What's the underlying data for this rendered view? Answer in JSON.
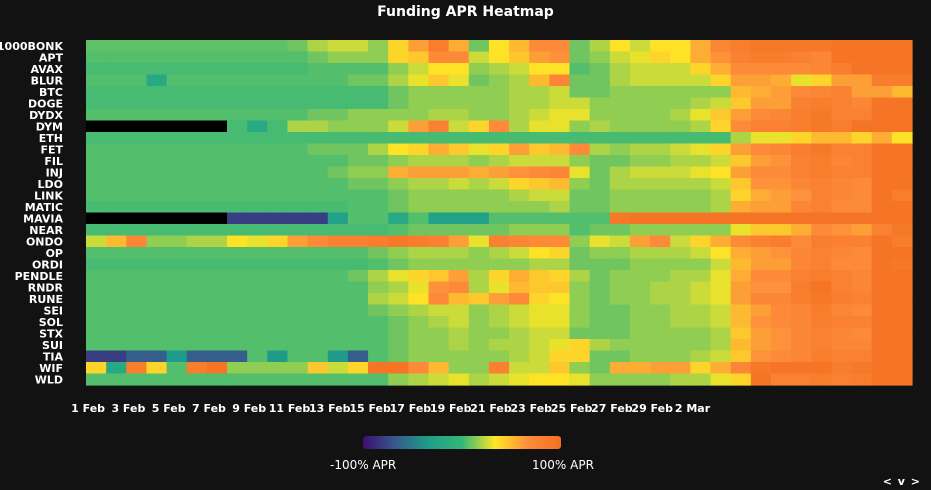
{
  "chart_data": {
    "type": "heatmap",
    "title": "Funding APR Heatmap",
    "rows": [
      "1000BONK",
      "APT",
      "AVAX",
      "BLUR",
      "BTC",
      "DOGE",
      "DYDX",
      "DYM",
      "ETH",
      "FET",
      "FIL",
      "INJ",
      "LDO",
      "LINK",
      "MATIC",
      "MAVIA",
      "NEAR",
      "ONDO",
      "OP",
      "ORDI",
      "PENDLE",
      "RNDR",
      "RUNE",
      "SEI",
      "SOL",
      "STX",
      "SUI",
      "TIA",
      "WIF",
      "WLD"
    ],
    "x_tick_labels": [
      "1 Feb",
      "3 Feb",
      "5 Feb",
      "7 Feb",
      "9 Feb",
      "11 Feb",
      "13 Feb",
      "15 Feb",
      "17 Feb",
      "19 Feb",
      "21 Feb",
      "23 Feb",
      "25 Feb",
      "27 Feb",
      "29 Feb",
      "2 Mar"
    ],
    "value_scale": [
      -100,
      100
    ],
    "missing_color": "#000000",
    "colors": [
      "#3b0f6f",
      "#375b8d",
      "#1f9e89",
      "#35b779",
      "#fde725",
      "#fd8d3c",
      "#f37021"
    ],
    "data": [
      [
        7,
        7,
        7,
        7,
        7,
        7,
        7,
        7,
        7,
        7,
        10,
        20,
        25,
        25,
        15,
        40,
        60,
        85,
        55,
        10,
        35,
        50,
        70,
        70,
        10,
        20,
        35,
        25,
        35,
        35,
        55,
        75,
        85,
        90,
        90,
        90,
        90,
        95,
        95,
        95,
        95
      ],
      [
        5,
        5,
        5,
        5,
        5,
        5,
        5,
        5,
        5,
        5,
        5,
        10,
        15,
        15,
        15,
        40,
        45,
        70,
        70,
        25,
        35,
        45,
        60,
        65,
        10,
        15,
        25,
        30,
        40,
        35,
        55,
        65,
        80,
        85,
        85,
        80,
        75,
        95,
        95,
        95,
        95
      ],
      [
        3,
        3,
        3,
        3,
        3,
        3,
        3,
        3,
        3,
        3,
        3,
        5,
        5,
        5,
        5,
        15,
        25,
        35,
        35,
        15,
        20,
        25,
        35,
        35,
        5,
        10,
        20,
        25,
        25,
        25,
        40,
        55,
        70,
        70,
        70,
        70,
        75,
        85,
        95,
        95,
        95
      ],
      [
        5,
        5,
        5,
        -20,
        5,
        5,
        5,
        5,
        5,
        5,
        5,
        5,
        5,
        10,
        10,
        20,
        30,
        45,
        30,
        10,
        15,
        20,
        50,
        75,
        10,
        10,
        20,
        25,
        25,
        25,
        25,
        40,
        60,
        60,
        55,
        30,
        40,
        60,
        60,
        85,
        85
      ],
      [
        3,
        3,
        3,
        3,
        3,
        3,
        3,
        3,
        3,
        3,
        3,
        3,
        3,
        3,
        3,
        10,
        15,
        15,
        15,
        15,
        15,
        20,
        20,
        25,
        10,
        10,
        15,
        15,
        15,
        15,
        15,
        15,
        50,
        55,
        60,
        70,
        75,
        80,
        60,
        60,
        50
      ],
      [
        3,
        3,
        3,
        3,
        3,
        3,
        3,
        3,
        3,
        3,
        3,
        3,
        3,
        3,
        3,
        10,
        15,
        15,
        15,
        15,
        15,
        20,
        20,
        25,
        25,
        15,
        15,
        15,
        15,
        15,
        20,
        25,
        45,
        60,
        60,
        80,
        85,
        80,
        75,
        95,
        95
      ],
      [
        5,
        5,
        5,
        5,
        5,
        5,
        5,
        5,
        5,
        5,
        5,
        10,
        10,
        15,
        15,
        15,
        15,
        20,
        20,
        15,
        15,
        20,
        25,
        30,
        30,
        15,
        15,
        15,
        15,
        20,
        30,
        45,
        60,
        70,
        75,
        85,
        90,
        80,
        80,
        95,
        95
      ],
      [
        "x",
        "x",
        "x",
        "x",
        "x",
        "x",
        "x",
        3,
        -20,
        3,
        20,
        20,
        15,
        15,
        15,
        25,
        60,
        80,
        25,
        40,
        70,
        20,
        30,
        30,
        15,
        20,
        15,
        15,
        15,
        15,
        20,
        40,
        70,
        80,
        80,
        85,
        90,
        85,
        95,
        95,
        95
      ],
      [
        3,
        3,
        3,
        3,
        3,
        3,
        3,
        3,
        3,
        3,
        3,
        3,
        3,
        3,
        3,
        3,
        3,
        3,
        3,
        3,
        3,
        3,
        3,
        3,
        3,
        3,
        3,
        3,
        3,
        3,
        3,
        3,
        20,
        30,
        30,
        40,
        50,
        50,
        40,
        55,
        35
      ],
      [
        5,
        5,
        5,
        5,
        5,
        5,
        5,
        5,
        5,
        5,
        5,
        10,
        10,
        10,
        20,
        35,
        40,
        55,
        45,
        30,
        40,
        60,
        45,
        50,
        70,
        20,
        15,
        20,
        20,
        25,
        30,
        40,
        60,
        70,
        75,
        85,
        90,
        80,
        80,
        95,
        95
      ],
      [
        5,
        5,
        5,
        5,
        5,
        5,
        5,
        5,
        5,
        5,
        5,
        5,
        5,
        10,
        10,
        15,
        20,
        20,
        20,
        15,
        20,
        25,
        25,
        25,
        15,
        10,
        10,
        15,
        15,
        20,
        20,
        25,
        45,
        60,
        65,
        80,
        85,
        75,
        80,
        95,
        95
      ],
      [
        5,
        5,
        5,
        5,
        5,
        5,
        5,
        5,
        5,
        5,
        5,
        5,
        10,
        15,
        15,
        55,
        60,
        60,
        60,
        55,
        60,
        65,
        70,
        75,
        30,
        10,
        20,
        25,
        25,
        25,
        30,
        35,
        60,
        70,
        70,
        80,
        85,
        80,
        80,
        95,
        95
      ],
      [
        5,
        5,
        5,
        5,
        5,
        5,
        5,
        5,
        5,
        5,
        5,
        5,
        5,
        10,
        10,
        15,
        20,
        20,
        25,
        20,
        25,
        40,
        45,
        50,
        15,
        10,
        20,
        20,
        20,
        20,
        20,
        25,
        45,
        65,
        65,
        75,
        80,
        75,
        70,
        95,
        95
      ],
      [
        5,
        5,
        5,
        5,
        5,
        5,
        5,
        5,
        5,
        5,
        5,
        5,
        5,
        5,
        5,
        10,
        15,
        15,
        15,
        15,
        15,
        20,
        25,
        25,
        10,
        10,
        15,
        15,
        15,
        15,
        15,
        20,
        40,
        55,
        60,
        65,
        80,
        75,
        70,
        95,
        85
      ],
      [
        3,
        3,
        3,
        3,
        3,
        3,
        3,
        3,
        3,
        3,
        3,
        3,
        3,
        5,
        5,
        10,
        15,
        15,
        15,
        15,
        15,
        15,
        15,
        20,
        10,
        10,
        15,
        15,
        15,
        15,
        15,
        20,
        55,
        60,
        60,
        75,
        80,
        70,
        70,
        95,
        95
      ],
      [
        "x",
        "x",
        "x",
        "x",
        "x",
        "x",
        "x",
        -80,
        -80,
        -80,
        -80,
        -80,
        -30,
        5,
        5,
        -20,
        5,
        -30,
        -30,
        -30,
        5,
        5,
        5,
        5,
        5,
        5,
        90,
        95,
        95,
        95,
        95,
        95,
        95,
        95,
        95,
        95,
        95,
        95,
        95,
        95,
        95
      ],
      [
        3,
        3,
        3,
        3,
        3,
        3,
        3,
        3,
        3,
        3,
        3,
        3,
        3,
        3,
        3,
        5,
        10,
        10,
        10,
        10,
        10,
        15,
        15,
        15,
        5,
        10,
        10,
        15,
        15,
        15,
        15,
        15,
        30,
        45,
        45,
        55,
        70,
        65,
        60,
        80,
        90
      ],
      [
        25,
        50,
        75,
        15,
        15,
        20,
        20,
        35,
        30,
        40,
        60,
        70,
        80,
        80,
        85,
        90,
        85,
        80,
        60,
        30,
        80,
        75,
        70,
        70,
        15,
        30,
        25,
        60,
        70,
        25,
        40,
        55,
        70,
        80,
        85,
        70,
        85,
        80,
        80,
        95,
        85
      ],
      [
        5,
        5,
        5,
        5,
        5,
        5,
        5,
        5,
        5,
        5,
        5,
        5,
        5,
        5,
        10,
        15,
        20,
        20,
        20,
        15,
        20,
        25,
        35,
        40,
        10,
        15,
        15,
        20,
        20,
        20,
        25,
        35,
        55,
        60,
        65,
        75,
        80,
        75,
        70,
        95,
        95
      ],
      [
        3,
        3,
        3,
        3,
        3,
        3,
        3,
        3,
        3,
        3,
        3,
        3,
        3,
        3,
        5,
        10,
        15,
        15,
        15,
        15,
        15,
        15,
        20,
        20,
        10,
        10,
        10,
        15,
        15,
        15,
        15,
        25,
        50,
        60,
        60,
        75,
        80,
        70,
        70,
        95,
        90
      ],
      [
        5,
        5,
        5,
        5,
        5,
        5,
        5,
        5,
        5,
        5,
        5,
        5,
        5,
        10,
        20,
        30,
        40,
        45,
        60,
        20,
        40,
        55,
        45,
        40,
        20,
        10,
        15,
        15,
        15,
        20,
        20,
        30,
        55,
        70,
        70,
        80,
        85,
        80,
        75,
        95,
        95
      ],
      [
        5,
        5,
        5,
        5,
        5,
        5,
        5,
        5,
        5,
        5,
        5,
        5,
        5,
        5,
        15,
        20,
        30,
        65,
        70,
        20,
        30,
        50,
        45,
        45,
        15,
        10,
        15,
        15,
        20,
        20,
        25,
        30,
        60,
        65,
        65,
        85,
        95,
        80,
        75,
        95,
        95
      ],
      [
        5,
        5,
        5,
        5,
        5,
        5,
        5,
        5,
        5,
        5,
        5,
        5,
        5,
        5,
        20,
        25,
        35,
        70,
        50,
        45,
        60,
        70,
        40,
        35,
        15,
        10,
        15,
        15,
        20,
        20,
        25,
        30,
        60,
        75,
        75,
        85,
        90,
        85,
        80,
        95,
        95
      ],
      [
        5,
        5,
        5,
        5,
        5,
        5,
        5,
        5,
        5,
        5,
        5,
        5,
        5,
        5,
        10,
        15,
        20,
        25,
        25,
        15,
        20,
        25,
        30,
        30,
        15,
        10,
        10,
        15,
        15,
        20,
        20,
        25,
        50,
        60,
        70,
        75,
        85,
        75,
        70,
        95,
        95
      ],
      [
        5,
        5,
        5,
        5,
        5,
        5,
        5,
        5,
        5,
        5,
        5,
        5,
        5,
        5,
        5,
        10,
        15,
        20,
        25,
        15,
        20,
        25,
        30,
        30,
        15,
        10,
        10,
        15,
        15,
        20,
        20,
        25,
        50,
        65,
        70,
        75,
        85,
        80,
        80,
        95,
        95
      ],
      [
        5,
        5,
        5,
        5,
        5,
        5,
        5,
        5,
        5,
        5,
        5,
        5,
        5,
        5,
        5,
        10,
        15,
        15,
        20,
        15,
        15,
        20,
        25,
        25,
        10,
        10,
        10,
        15,
        15,
        15,
        15,
        20,
        45,
        60,
        65,
        75,
        80,
        75,
        70,
        95,
        95
      ],
      [
        5,
        5,
        5,
        5,
        5,
        5,
        5,
        5,
        5,
        5,
        5,
        5,
        5,
        5,
        5,
        10,
        15,
        15,
        20,
        15,
        20,
        20,
        25,
        30,
        40,
        20,
        15,
        15,
        15,
        15,
        15,
        20,
        50,
        60,
        65,
        75,
        80,
        75,
        75,
        95,
        95
      ],
      [
        -80,
        -80,
        -65,
        -65,
        -35,
        -65,
        -65,
        -65,
        5,
        -35,
        5,
        5,
        -35,
        -65,
        5,
        10,
        15,
        15,
        15,
        15,
        15,
        20,
        25,
        40,
        40,
        10,
        10,
        15,
        15,
        15,
        20,
        25,
        45,
        65,
        70,
        75,
        85,
        80,
        80,
        95,
        95
      ],
      [
        40,
        -20,
        85,
        40,
        5,
        85,
        95,
        15,
        15,
        15,
        15,
        45,
        25,
        40,
        95,
        95,
        70,
        50,
        15,
        15,
        80,
        25,
        25,
        45,
        15,
        10,
        55,
        55,
        60,
        60,
        40,
        55,
        75,
        90,
        95,
        95,
        95,
        85,
        90,
        95,
        95
      ],
      [
        5,
        5,
        5,
        5,
        5,
        5,
        5,
        5,
        5,
        5,
        5,
        5,
        5,
        5,
        5,
        15,
        20,
        25,
        30,
        20,
        25,
        30,
        35,
        35,
        30,
        15,
        15,
        15,
        15,
        20,
        20,
        30,
        40,
        95,
        80,
        80,
        85,
        80,
        85,
        95,
        95
      ]
    ],
    "legend": {
      "min_label": "-100% APR",
      "max_label": "100% APR"
    }
  },
  "nav_label": "< v >"
}
